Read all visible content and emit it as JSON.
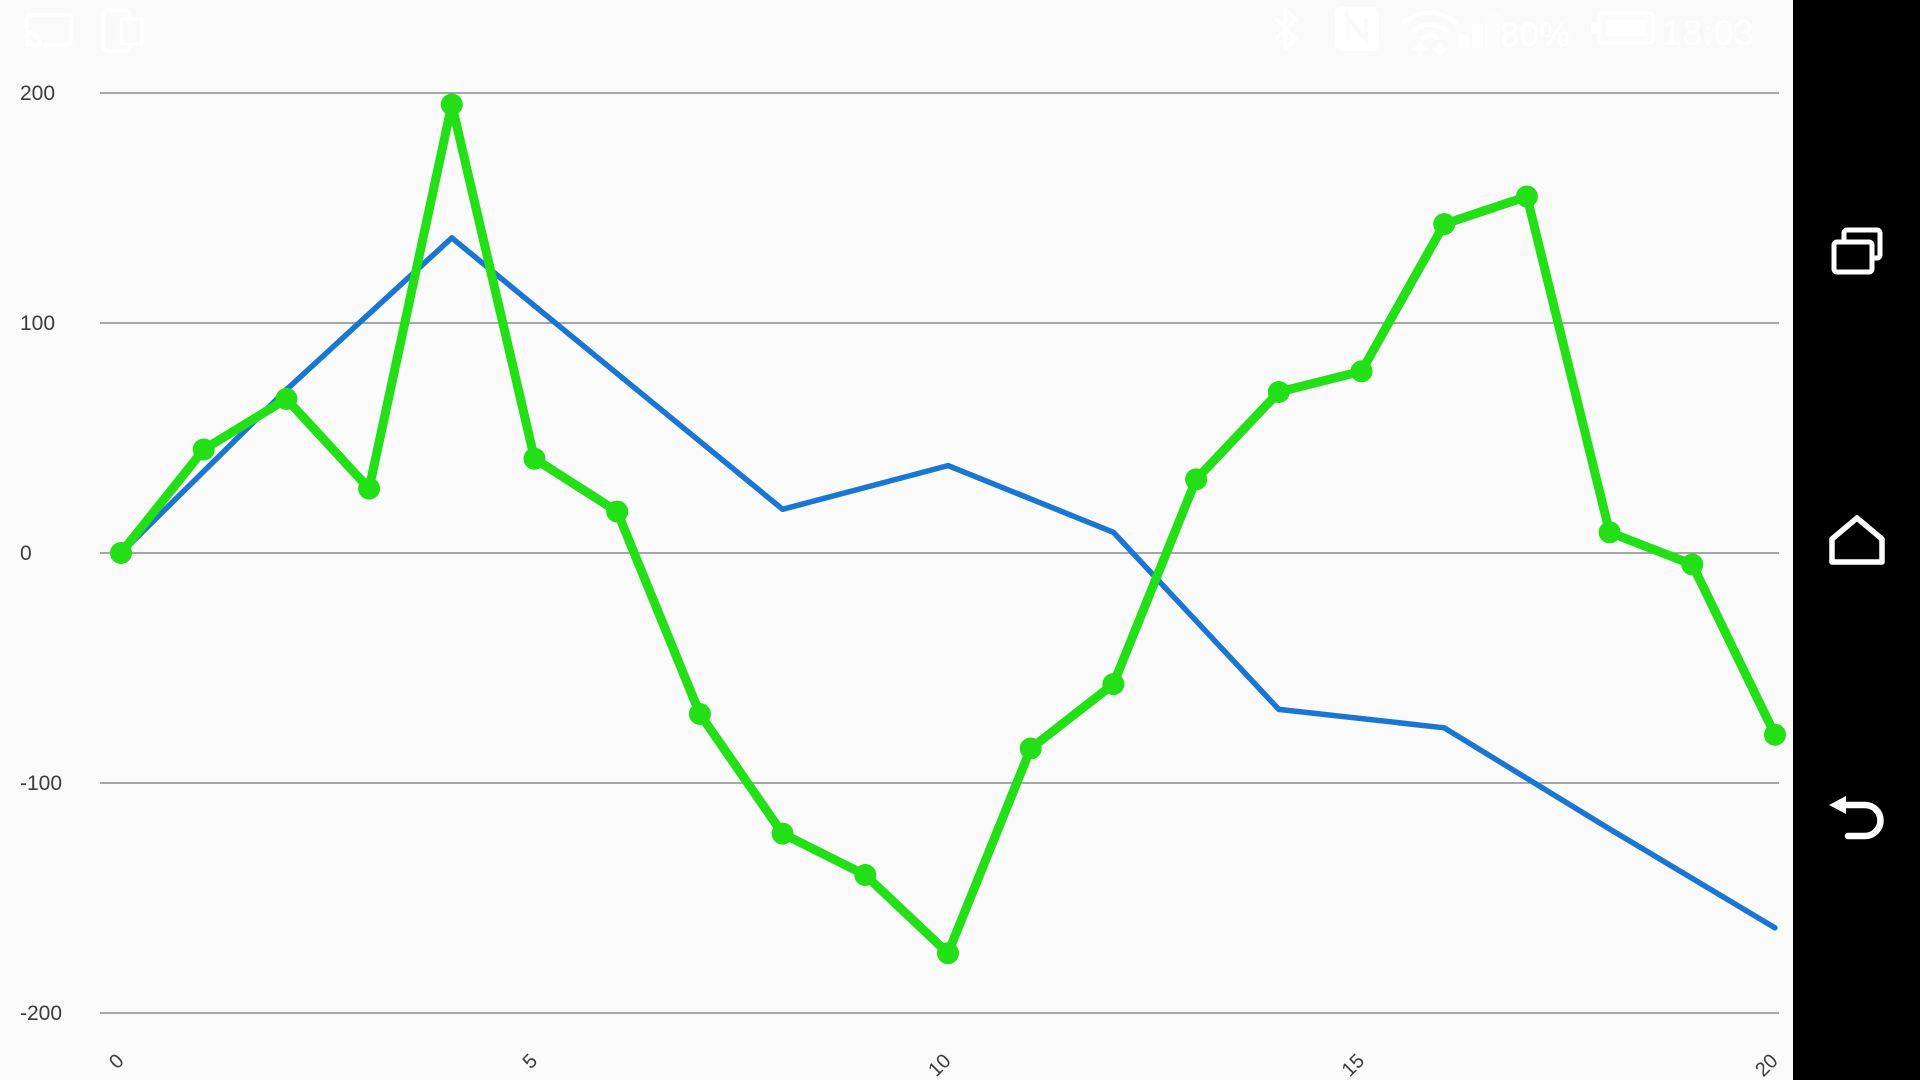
{
  "status_bar": {
    "left_icons": [
      "cast-icon",
      "screen-mirror-icon"
    ],
    "right_icons": [
      "bluetooth-icon",
      "nfc-icon",
      "wifi-icon",
      "signal-icon",
      "battery-icon"
    ],
    "battery_percent": "80%",
    "time": "18:03",
    "icon_color": "#ffffff"
  },
  "nav_bar": {
    "background": "#000000",
    "buttons": [
      {
        "name": "recents",
        "icon": "recents-icon"
      },
      {
        "name": "home",
        "icon": "home-icon"
      },
      {
        "name": "back",
        "icon": "back-icon"
      }
    ]
  },
  "chart_data": {
    "type": "line",
    "title": "",
    "xlabel": "",
    "ylabel": "",
    "xlim": [
      0,
      20
    ],
    "ylim": [
      -200,
      200
    ],
    "grid": "horizontal",
    "legend": "none",
    "background": "#fafafa",
    "gridline_color": "#8a8a8a",
    "tick_label_color": "#3c3c3c",
    "x_ticks": [
      0,
      5,
      10,
      15,
      20
    ],
    "y_ticks": [
      200,
      100,
      0,
      -100,
      -200
    ],
    "series": [
      {
        "name": "blue-line",
        "color": "#1976d2",
        "markers": false,
        "stroke_width": 5.5,
        "x": [
          0,
          2,
          4,
          6,
          8,
          10,
          12,
          14,
          16,
          18,
          20
        ],
        "y": [
          0,
          71,
          137,
          78,
          19,
          38,
          9,
          -68,
          -76,
          -120,
          -163
        ]
      },
      {
        "name": "green-line",
        "color": "#22df16",
        "markers": true,
        "stroke_width": 9,
        "x": [
          0,
          1,
          2,
          3,
          4,
          5,
          6,
          7,
          8,
          9,
          10,
          11,
          12,
          13,
          14,
          15,
          16,
          17,
          18,
          19,
          20
        ],
        "y": [
          0,
          45,
          67,
          28,
          195,
          41,
          18,
          -70,
          -122,
          -140,
          -174,
          -85,
          -57,
          32,
          70,
          79,
          143,
          155,
          9,
          -5,
          -79
        ]
      }
    ]
  }
}
